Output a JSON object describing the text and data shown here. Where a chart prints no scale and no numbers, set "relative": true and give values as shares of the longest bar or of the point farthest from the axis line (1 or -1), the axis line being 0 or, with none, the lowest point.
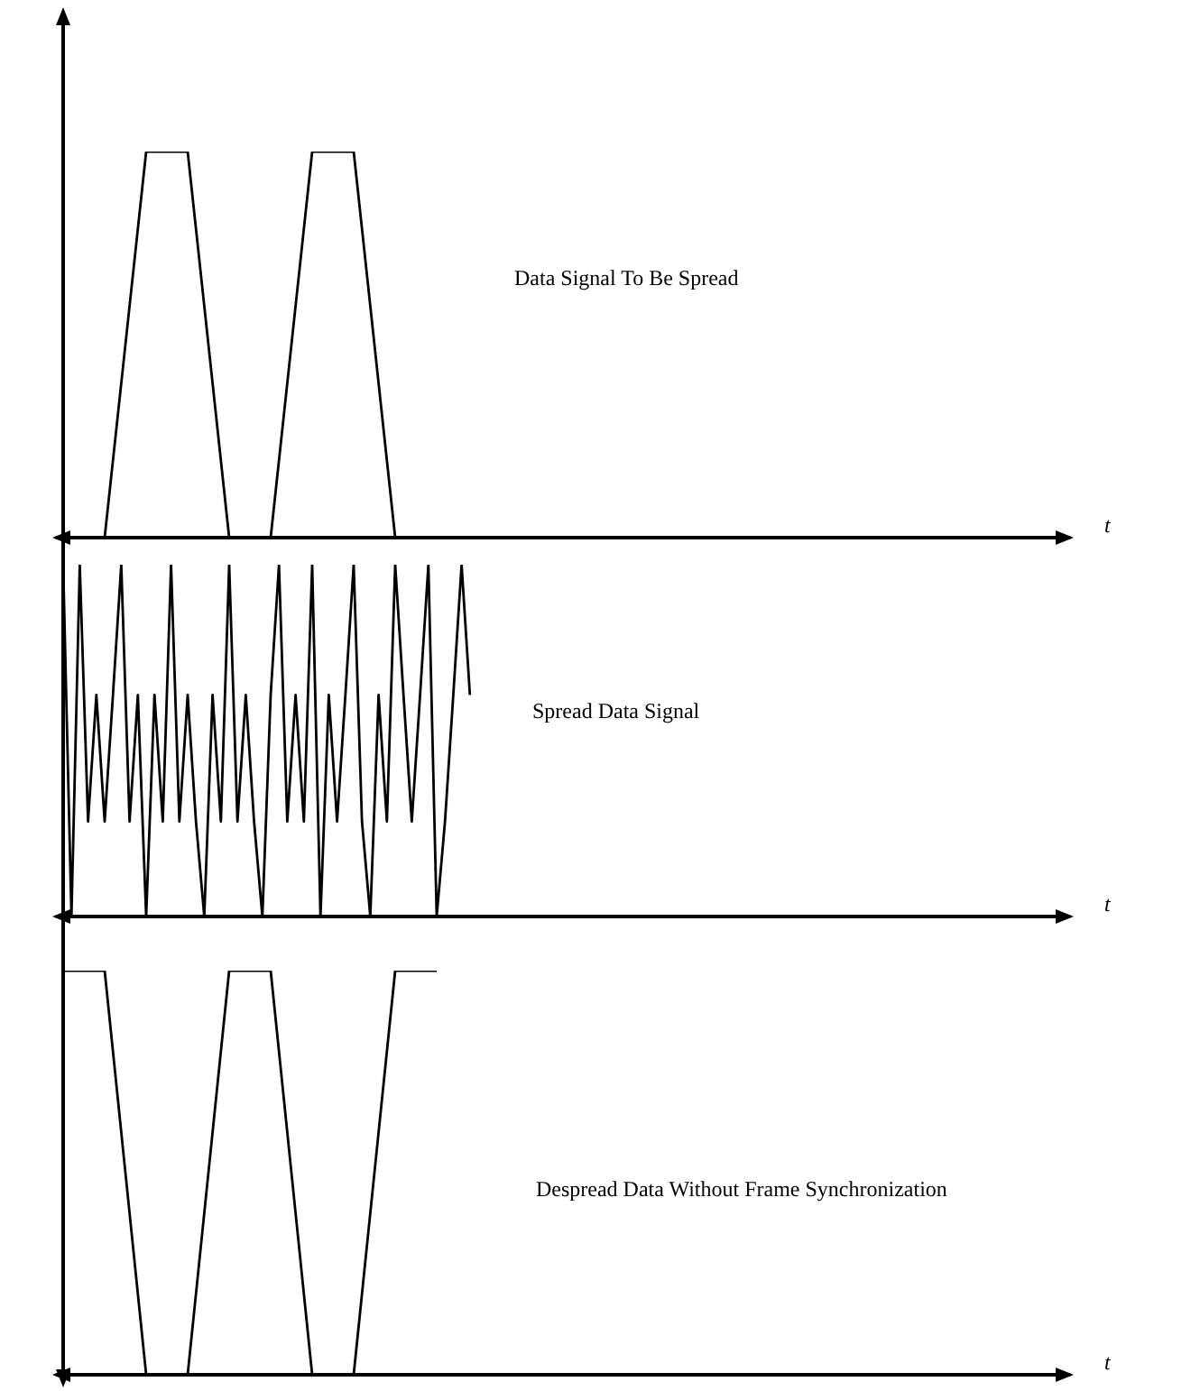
{
  "chart_data": [
    {
      "type": "line",
      "relative": true,
      "xlabel": "t",
      "annotations": [
        "Data Signal To Be Spread"
      ],
      "color": "#000000",
      "marker": "none",
      "tick_labels": false,
      "categories": [
        null,
        null,
        null,
        null,
        null,
        null,
        null,
        null,
        null,
        null,
        null,
        null,
        null,
        null,
        null,
        null,
        null,
        null,
        null,
        null,
        null,
        null,
        null,
        null,
        null
      ],
      "values": [
        0,
        0,
        1,
        1,
        0,
        0,
        1,
        1,
        0,
        0,
        0,
        0,
        0,
        0,
        0,
        0,
        0,
        0,
        0,
        0,
        0,
        0,
        0,
        0,
        0
      ]
    },
    {
      "type": "line",
      "relative": true,
      "xlabel": "t",
      "annotations": [
        "Spread Data Signal"
      ],
      "color": "#000000",
      "marker": "none",
      "tick_labels": false,
      "categories": [
        null,
        null,
        null,
        null,
        null,
        null,
        null,
        null,
        null,
        null,
        null,
        null,
        null,
        null,
        null,
        null,
        null,
        null,
        null,
        null,
        null,
        null,
        null,
        null,
        null,
        null,
        null,
        null,
        null,
        null,
        null,
        null,
        null,
        null,
        null,
        null,
        null,
        null,
        null,
        null,
        null,
        null,
        null,
        null,
        null,
        null,
        null,
        null,
        null,
        null,
        null,
        null,
        null,
        null,
        null,
        null,
        null,
        null,
        null,
        null,
        null,
        null,
        null,
        null,
        null,
        null,
        null,
        null,
        null,
        null,
        null,
        null,
        null,
        null,
        null,
        null,
        null,
        null,
        null,
        null,
        null,
        null,
        null,
        null,
        null,
        null,
        null,
        null,
        null,
        null,
        null,
        null,
        null,
        null,
        null,
        null,
        null,
        null,
        null,
        null,
        null,
        null,
        null,
        null,
        null,
        null,
        null,
        null,
        null,
        null,
        null,
        null,
        null,
        null,
        null,
        null,
        null,
        null,
        null,
        null,
        null
      ],
      "values": [
        1,
        0,
        1,
        0.27,
        0.63,
        0.27,
        0.63,
        1,
        0.27,
        0.63,
        0,
        0.63,
        0.27,
        1,
        0.27,
        0.63,
        0.27,
        0,
        0.63,
        0.27,
        1,
        0.27,
        0.63,
        0.27,
        0,
        0.63,
        1,
        0.27,
        0.63,
        0.27,
        1,
        0,
        0.63,
        0.27,
        0.63,
        1,
        0.27,
        0,
        0.63,
        0.27,
        1,
        0.63,
        0.27,
        0.63,
        1,
        0,
        0.27,
        0.63,
        1,
        0.63,
        null,
        null,
        null,
        null,
        null,
        null,
        null,
        null,
        null,
        null,
        null,
        null,
        null,
        null,
        null,
        null,
        null,
        null,
        null,
        null,
        null,
        null,
        null,
        null,
        null,
        null,
        null,
        null,
        null,
        null,
        null,
        null,
        null,
        null,
        null,
        null,
        null,
        null,
        null,
        null,
        null,
        null,
        null,
        null,
        null,
        null,
        null,
        null,
        null,
        null,
        null,
        null,
        null,
        null,
        null,
        null,
        null,
        null,
        null,
        null,
        null,
        null,
        null,
        null,
        null,
        null,
        null,
        null,
        null,
        null,
        null
      ]
    },
    {
      "type": "line",
      "relative": true,
      "xlabel": "t",
      "annotations": [
        "Despread Data Without Frame Synchronization"
      ],
      "color": "#000000",
      "marker": "none",
      "tick_labels": false,
      "categories": [
        null,
        null,
        null,
        null,
        null,
        null,
        null,
        null,
        null,
        null,
        null,
        null,
        null,
        null,
        null,
        null,
        null,
        null,
        null,
        null,
        null,
        null,
        null,
        null,
        null
      ],
      "values": [
        1,
        1,
        0,
        0,
        1,
        1,
        0,
        0,
        1,
        1,
        null,
        null,
        null,
        null,
        null,
        null,
        null,
        null,
        null,
        null,
        null,
        null,
        null,
        null,
        null
      ]
    }
  ]
}
